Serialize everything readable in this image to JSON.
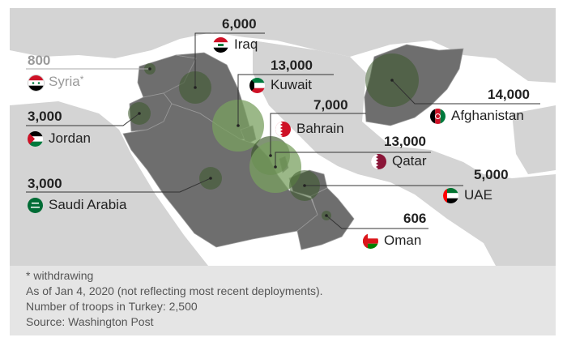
{
  "countries": [
    {
      "id": "syria",
      "name": "Syria",
      "troops": "800",
      "note": "*",
      "withdrawing": true
    },
    {
      "id": "iraq",
      "name": "Iraq",
      "troops": "6,000"
    },
    {
      "id": "kuwait",
      "name": "Kuwait",
      "troops": "13,000"
    },
    {
      "id": "jordan",
      "name": "Jordan",
      "troops": "3,000"
    },
    {
      "id": "bahrain",
      "name": "Bahrain",
      "troops": "7,000"
    },
    {
      "id": "afghanistan",
      "name": "Afghanistan",
      "troops": "14,000"
    },
    {
      "id": "qatar",
      "name": "Qatar",
      "troops": "13,000"
    },
    {
      "id": "saudi",
      "name": "Saudi Arabia",
      "troops": "3,000"
    },
    {
      "id": "uae",
      "name": "UAE",
      "troops": "5,000"
    },
    {
      "id": "oman",
      "name": "Oman",
      "troops": "606"
    }
  ],
  "footnotes": {
    "withdrawing": "* withdrawing",
    "as_of": "As of Jan 4, 2020 (not reflecting most recent deployments).",
    "turkey": "Number of troops in Turkey: 2,500",
    "source": "Source: Washington Post"
  },
  "colors": {
    "land_highlight": "#6e6e6e",
    "land_other": "#d4d4d4",
    "sea": "#ffffff",
    "bubble": "#3d5a2b",
    "bubble_light": "#7aa060",
    "leader": "#333333",
    "footer_bg": "#e5e5e5"
  },
  "icons": [
    "syria-flag-icon",
    "iraq-flag-icon",
    "kuwait-flag-icon",
    "jordan-flag-icon",
    "bahrain-flag-icon",
    "afghanistan-flag-icon",
    "qatar-flag-icon",
    "saudi-flag-icon",
    "uae-flag-icon",
    "oman-flag-icon"
  ]
}
